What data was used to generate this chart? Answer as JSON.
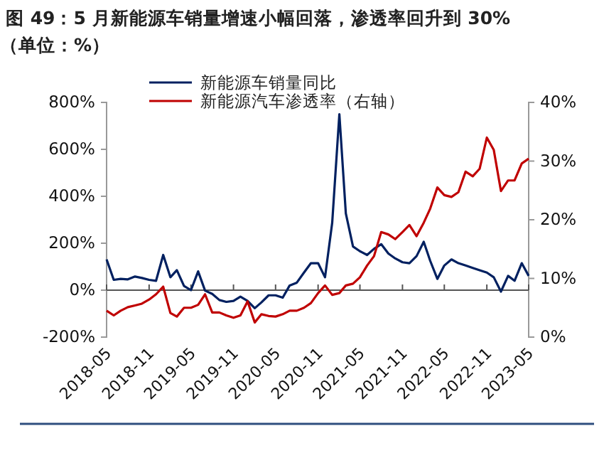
{
  "chart_data": {
    "type": "line",
    "title": "图 49：5 月新能源车销量增速小幅回落，渗透率回升到 30%",
    "subtitle": "（单位：%）",
    "x": [
      "2018-05",
      "2018-06",
      "2018-07",
      "2018-08",
      "2018-09",
      "2018-10",
      "2018-11",
      "2018-12",
      "2019-01",
      "2019-02",
      "2019-03",
      "2019-04",
      "2019-05",
      "2019-06",
      "2019-07",
      "2019-08",
      "2019-09",
      "2019-10",
      "2019-11",
      "2019-12",
      "2020-01",
      "2020-02",
      "2020-03",
      "2020-04",
      "2020-05",
      "2020-06",
      "2020-07",
      "2020-08",
      "2020-09",
      "2020-10",
      "2020-11",
      "2020-12",
      "2021-01",
      "2021-02",
      "2021-03",
      "2021-04",
      "2021-05",
      "2021-06",
      "2021-07",
      "2021-08",
      "2021-09",
      "2021-10",
      "2021-11",
      "2021-12",
      "2022-01",
      "2022-02",
      "2022-03",
      "2022-04",
      "2022-05",
      "2022-06",
      "2022-07",
      "2022-08",
      "2022-09",
      "2022-10",
      "2022-11",
      "2022-12",
      "2023-01",
      "2023-02",
      "2023-03",
      "2023-04",
      "2023-05"
    ],
    "series": [
      {
        "name": "新能源车销量同比",
        "color": "#002060",
        "values": [
          131,
          44,
          48,
          46,
          58,
          52,
          44,
          40,
          150,
          55,
          85,
          18,
          0,
          80,
          -2,
          -16,
          -42,
          -50,
          -46,
          -28,
          -46,
          -77,
          -52,
          -22,
          -22,
          -32,
          20,
          32,
          75,
          115,
          115,
          55,
          287,
          750,
          327,
          186,
          166,
          150,
          176,
          196,
          156,
          135,
          119,
          115,
          145,
          206,
          125,
          48,
          105,
          131,
          115,
          105,
          95,
          85,
          75,
          55,
          -6,
          61,
          40,
          115,
          61
        ]
      },
      {
        "name": "新能源汽车渗透率（右轴）",
        "color": "#c00000",
        "axis": "y2",
        "values": [
          4.5,
          3.7,
          4.5,
          5.1,
          5.4,
          5.7,
          6.4,
          7.3,
          8.6,
          4.1,
          3.5,
          5.0,
          5.0,
          5.5,
          7.3,
          4.2,
          4.2,
          3.7,
          3.3,
          3.7,
          6.1,
          2.5,
          3.9,
          3.6,
          3.5,
          3.9,
          4.5,
          4.5,
          5.0,
          5.8,
          7.5,
          8.8,
          7.2,
          7.5,
          8.8,
          9.1,
          10.2,
          12.2,
          13.8,
          17.9,
          17.5,
          16.7,
          17.9,
          19.1,
          17.2,
          19.5,
          21.9,
          25.5,
          24.2,
          23.9,
          24.7,
          28.2,
          27.4,
          28.7,
          34.0,
          31.9,
          24.9,
          26.7,
          26.7,
          29.6,
          30.4
        ]
      }
    ],
    "xlim": [
      "2018-05",
      "2023-05"
    ],
    "xticks": [
      "2018-05",
      "2018-11",
      "2019-05",
      "2019-11",
      "2020-05",
      "2020-11",
      "2021-05",
      "2021-11",
      "2022-05",
      "2022-11",
      "2023-05"
    ],
    "ylim": [
      -200,
      800
    ],
    "yticks": [
      {
        "value": -200,
        "label": "-200%"
      },
      {
        "value": 0,
        "label": "0%"
      },
      {
        "value": 200,
        "label": "200%"
      },
      {
        "value": 400,
        "label": "400%"
      },
      {
        "value": 600,
        "label": "600%"
      },
      {
        "value": 800,
        "label": "800%"
      }
    ],
    "y2lim": [
      0,
      40
    ],
    "y2ticks": [
      {
        "value": 0,
        "label": "0%"
      },
      {
        "value": 10,
        "label": "10%"
      },
      {
        "value": 20,
        "label": "20%"
      },
      {
        "value": 30,
        "label": "30%"
      },
      {
        "value": 40,
        "label": "40%"
      }
    ],
    "ref_lines": [
      {
        "axis": "y",
        "value": 0,
        "color": "#555555"
      }
    ],
    "legend": "top left",
    "marker": "none",
    "line_style": "solid"
  }
}
